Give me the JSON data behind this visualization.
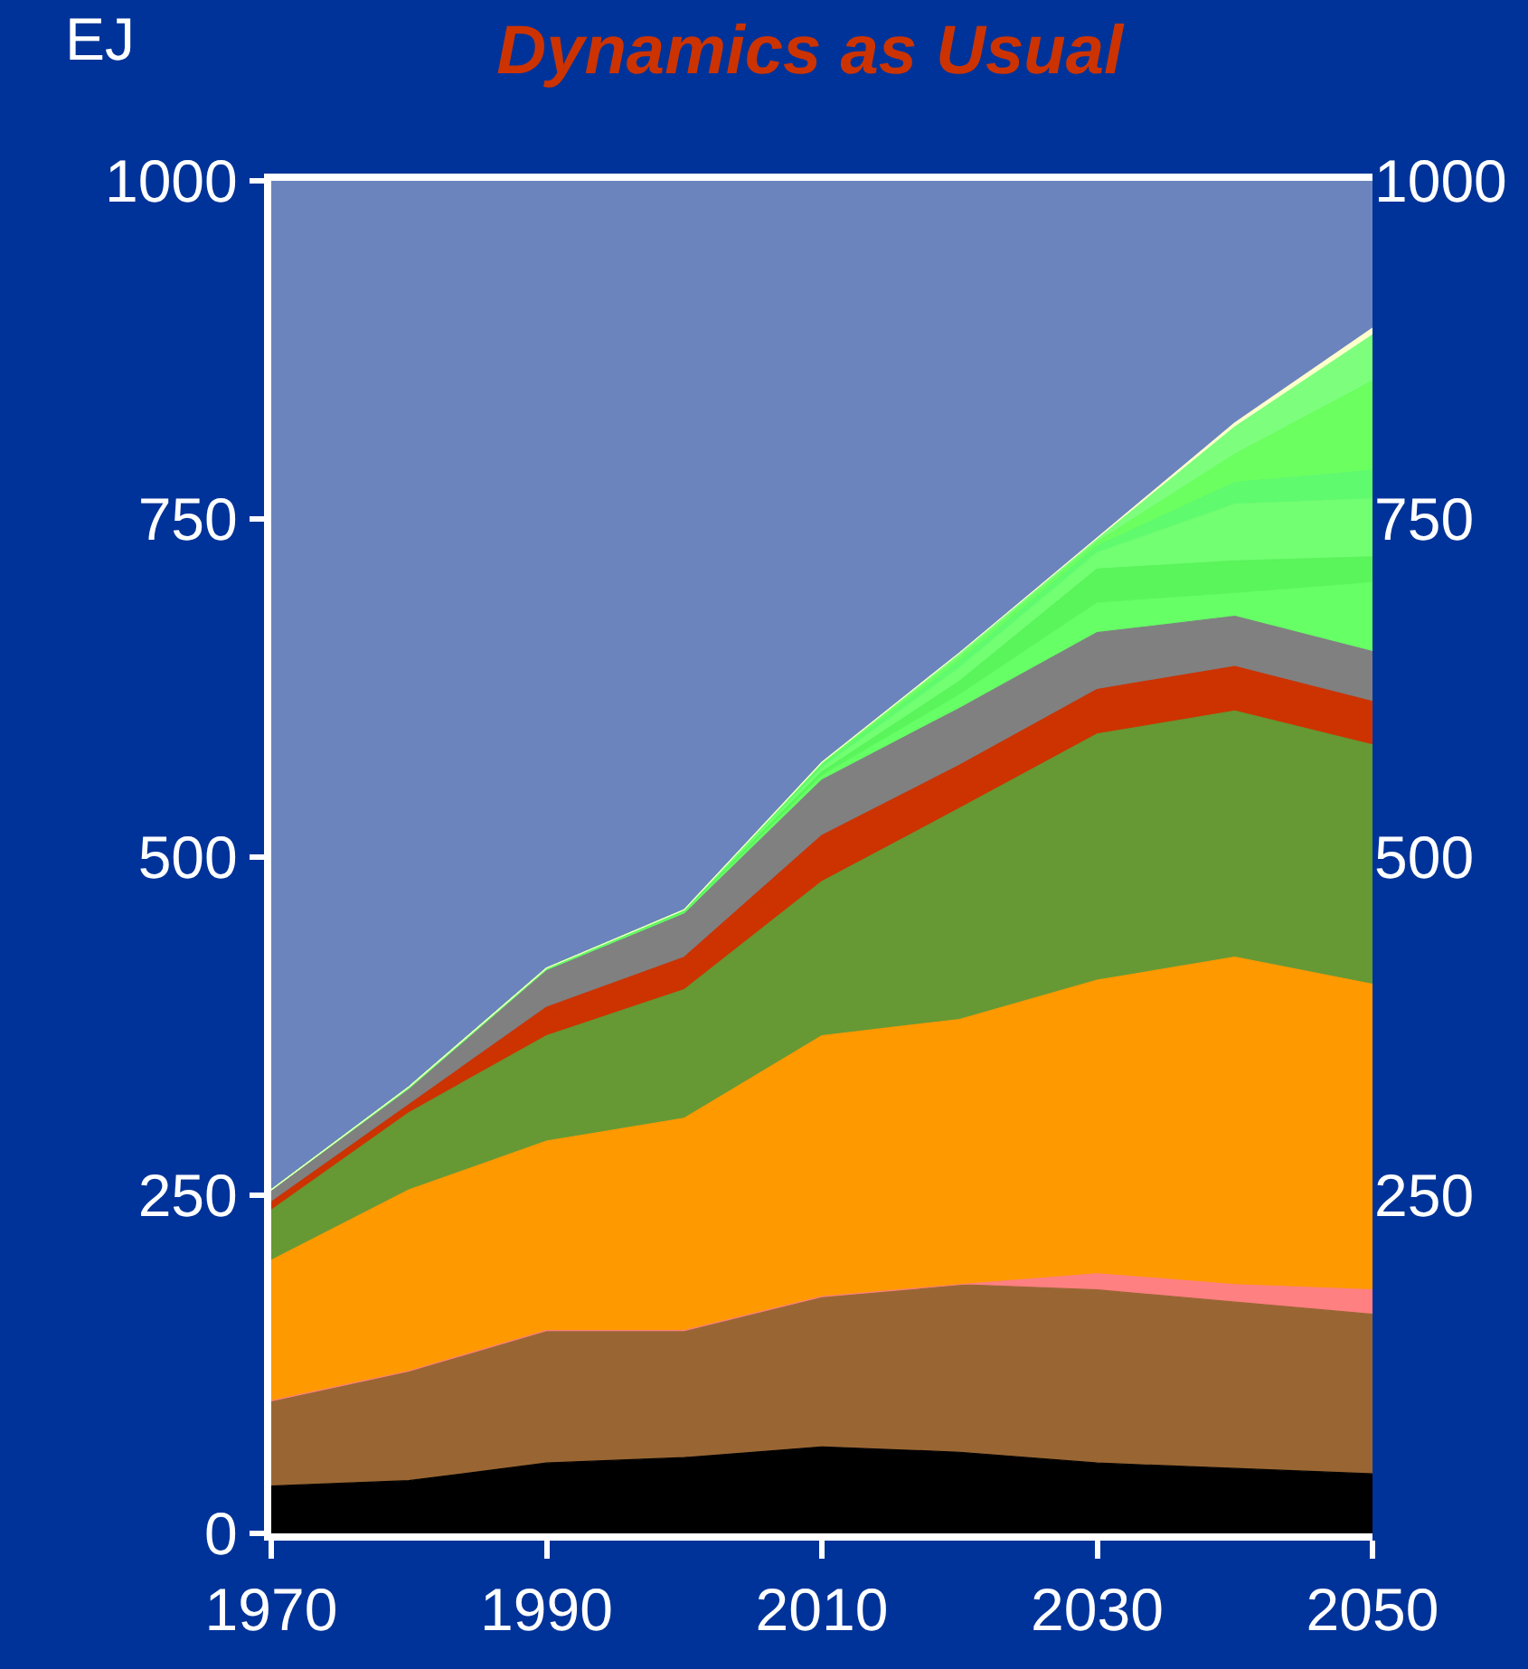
{
  "chart_data": {
    "type": "area",
    "title": "Dynamics as Usual",
    "ylabel": "EJ",
    "stacked": true,
    "x": [
      1970,
      1980,
      1990,
      2000,
      2010,
      2020,
      2030,
      2040,
      2050
    ],
    "xlim": [
      1970,
      2050
    ],
    "xticks": [
      1970,
      1990,
      2010,
      2030,
      2050
    ],
    "ylim": [
      0,
      1000
    ],
    "yticks": [
      0,
      250,
      500,
      750,
      1000
    ],
    "y2lim": [
      0,
      1000
    ],
    "y2ticks": [
      250,
      500,
      750,
      1000
    ],
    "series": [
      {
        "color": "#000000",
        "values": [
          35,
          39,
          52,
          56,
          64,
          60,
          52,
          48,
          44
        ]
      },
      {
        "color": "#996633",
        "values": [
          63,
          81,
          98,
          94,
          111,
          124,
          128,
          123,
          118
        ]
      },
      {
        "color": "#ff8080",
        "values": [
          0,
          0,
          0,
          0,
          0,
          0,
          12,
          13,
          18
        ]
      },
      {
        "color": "#ff9900",
        "values": [
          104,
          134,
          140,
          157,
          193,
          196,
          217,
          242,
          226
        ]
      },
      {
        "color": "#669933",
        "values": [
          37,
          57,
          78,
          95,
          114,
          156,
          182,
          182,
          177
        ]
      },
      {
        "color": "#cc3300",
        "values": [
          6,
          6,
          21,
          24,
          34,
          32,
          33,
          33,
          32
        ]
      },
      {
        "color": "#808080",
        "values": [
          9,
          12,
          27,
          32,
          41,
          42,
          42,
          37,
          37
        ]
      },
      {
        "color": "#66ff66",
        "values": [
          0,
          0,
          1,
          1,
          3,
          10,
          22,
          17,
          51
        ]
      },
      {
        "color": "#5af55a",
        "values": [
          0,
          1,
          1,
          1,
          3,
          10,
          25,
          24,
          19
        ]
      },
      {
        "color": "#72ff72",
        "values": [
          0,
          0,
          0,
          1,
          3,
          10,
          12,
          42,
          43
        ]
      },
      {
        "color": "#60fa6e",
        "values": [
          0,
          0,
          0,
          0,
          2,
          5,
          5,
          16,
          21
        ]
      },
      {
        "color": "#6cff60",
        "values": [
          0,
          0,
          0,
          0,
          1,
          3,
          3,
          21,
          66
        ]
      },
      {
        "color": "#7dff7d",
        "values": [
          0,
          0,
          0,
          0,
          1,
          3,
          2,
          20,
          34
        ]
      },
      {
        "color": "#ffffcc",
        "values": [
          0,
          0,
          0,
          0,
          0,
          0,
          1,
          3,
          5
        ]
      }
    ]
  }
}
